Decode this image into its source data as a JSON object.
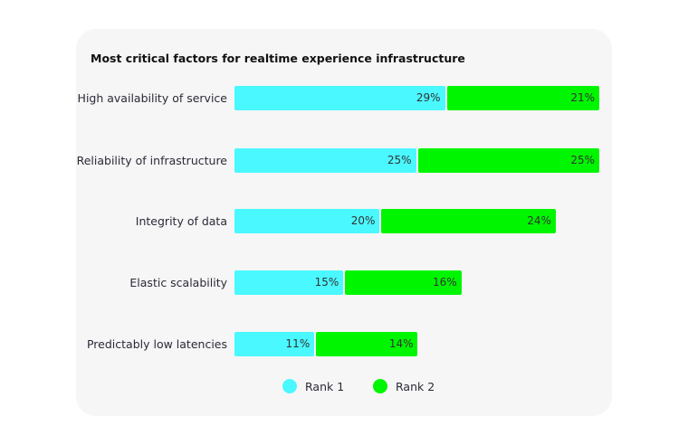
{
  "chart_data": {
    "type": "bar",
    "orientation": "horizontal",
    "stacked": true,
    "title": "Most critical factors for realtime experience infrastructure",
    "categories": [
      "High availability of service",
      "Reliability of infrastructure",
      "Integrity of data",
      "Elastic scalability",
      "Predictably low latencies"
    ],
    "series": [
      {
        "name": "Rank 1",
        "color": "#4af8ff",
        "values": [
          29,
          25,
          20,
          15,
          11
        ]
      },
      {
        "name": "Rank 2",
        "color": "#00f600",
        "values": [
          21,
          25,
          24,
          16,
          14
        ]
      }
    ],
    "value_format": "%",
    "legend_position": "bottom",
    "grid": false
  }
}
